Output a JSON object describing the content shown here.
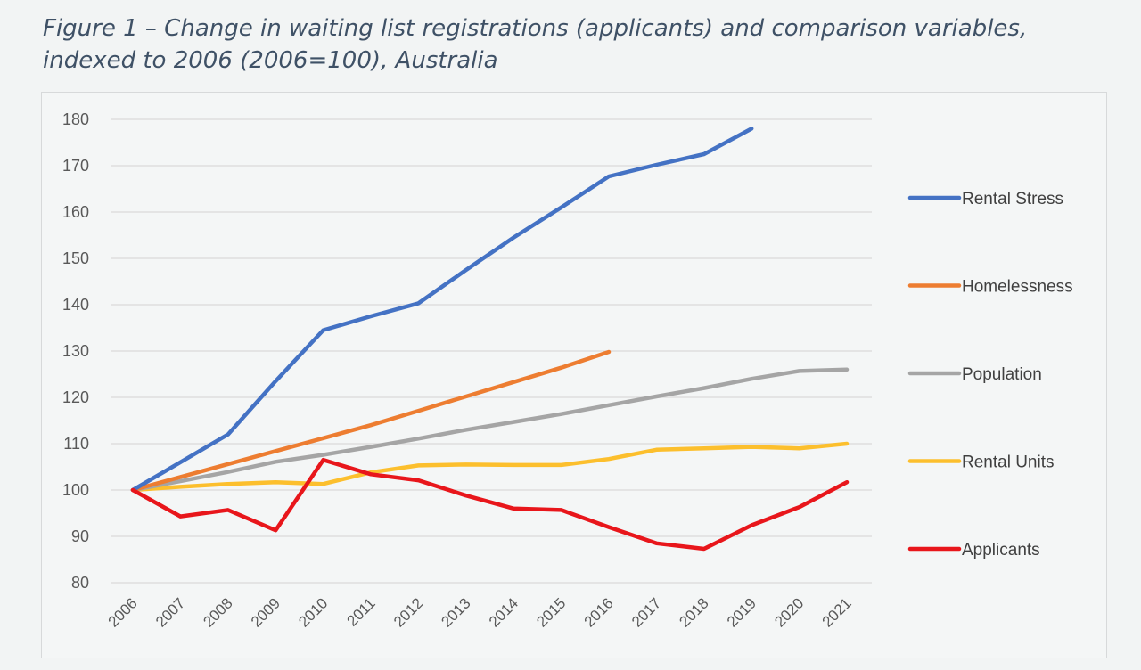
{
  "figure": {
    "title": "Figure 1 – Change in waiting list registrations (applicants) and comparison variables, indexed to 2006 (2006=100), Australia"
  },
  "chart_data": {
    "type": "line",
    "title": "Figure 1 – Change in waiting list registrations (applicants) and comparison variables, indexed to 2006 (2006=100), Australia",
    "xlabel": "",
    "ylabel": "",
    "x": [
      "2006",
      "2007",
      "2008",
      "2009",
      "2010",
      "2011",
      "2012",
      "2013",
      "2014",
      "2015",
      "2016",
      "2017",
      "2018",
      "2019",
      "2020",
      "2021"
    ],
    "ylim": [
      80,
      180
    ],
    "yticks": [
      80,
      90,
      100,
      110,
      120,
      130,
      140,
      150,
      160,
      170,
      180
    ],
    "grid": true,
    "legend_position": "right",
    "series": [
      {
        "name": "Rental Stress",
        "color": "#4472c4",
        "values": [
          100,
          106,
          112,
          123.5,
          134.5,
          137.5,
          140.3,
          147.5,
          154.5,
          161,
          167.7,
          170.2,
          172.5,
          178,
          null,
          null
        ]
      },
      {
        "name": "Homelessness",
        "color": "#ed7d31",
        "values": [
          100,
          102.8,
          105.6,
          108.4,
          111.2,
          114,
          117.1,
          120.2,
          123.3,
          126.4,
          129.8,
          null,
          null,
          null,
          null,
          null
        ]
      },
      {
        "name": "Population",
        "color": "#a5a5a5",
        "values": [
          100,
          101.9,
          103.9,
          106.1,
          107.6,
          109.3,
          111.1,
          113,
          114.7,
          116.4,
          118.3,
          120.2,
          122,
          124,
          125.7,
          126
        ]
      },
      {
        "name": "Rental Units",
        "color": "#fcbf2d",
        "values": [
          100,
          100.7,
          101.3,
          101.7,
          101.3,
          103.8,
          105.3,
          105.5,
          105.4,
          105.4,
          106.7,
          108.7,
          109,
          109.3,
          109,
          110
        ]
      },
      {
        "name": "Applicants",
        "color": "#e8161b",
        "values": [
          100,
          94.3,
          95.7,
          91.3,
          106.5,
          103.4,
          102.1,
          98.8,
          96,
          95.7,
          92,
          88.5,
          87.3,
          92.4,
          96.3,
          101.7
        ]
      }
    ]
  }
}
